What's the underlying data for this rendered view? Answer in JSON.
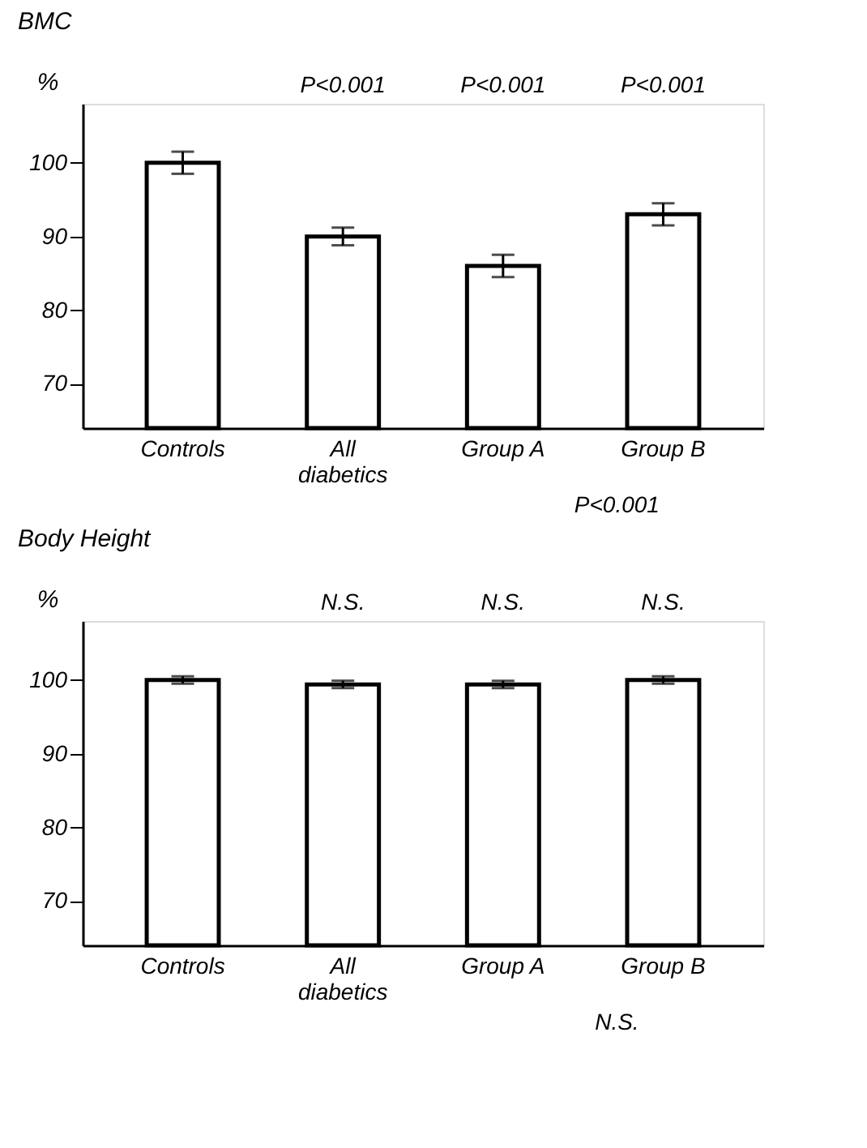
{
  "chart_data": [
    {
      "type": "bar",
      "title": "BMC",
      "ylabel": "%",
      "categories": [
        "Controls",
        "All diabetics",
        "Group A",
        "Group B"
      ],
      "values": [
        100,
        90,
        86,
        93
      ],
      "errors": [
        1.5,
        1.2,
        1.5,
        1.5
      ],
      "color": "#ffffff",
      "ylim": [
        64,
        108
      ],
      "yticks": [
        70,
        80,
        90,
        100
      ],
      "grid": false,
      "annotations": [
        "P<0.001",
        "P<0.001",
        "P<0.001",
        "P<0.001"
      ]
    },
    {
      "type": "bar",
      "title": "Body Height",
      "ylabel": "%",
      "categories": [
        "Controls",
        "All diabetics",
        "Group A",
        "Group B"
      ],
      "values": [
        100,
        99.4,
        99.4,
        100
      ],
      "errors": [
        0.5,
        0.5,
        0.5,
        0.5
      ],
      "color": "#ffffff",
      "ylim": [
        64,
        108
      ],
      "yticks": [
        70,
        80,
        90,
        100
      ],
      "grid": false,
      "annotations": [
        "N.S.",
        "N.S.",
        "N.S.",
        "N.S."
      ]
    }
  ]
}
